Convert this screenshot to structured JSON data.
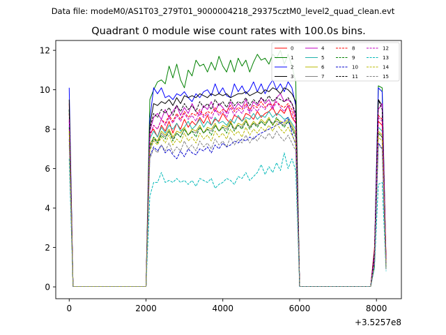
{
  "figure": {
    "suptitle": "Data file: modeM0/AS1T03_279T01_9000004218_29375cztM0_level2_quad_clean.evt"
  },
  "chart_data": {
    "type": "line",
    "title": "Quadrant 0 module wise count rates with 100.0s bins.",
    "xlabel": "",
    "ylabel": "",
    "offset_label": "+3.5257e8",
    "xlim": [
      -350,
      8650
    ],
    "ylim": [
      -0.6,
      12.5
    ],
    "xticks": [
      0,
      2000,
      4000,
      6000,
      8000
    ],
    "xtick_labels": [
      "0",
      "2000",
      "4000",
      "6000",
      "8000"
    ],
    "yticks": [
      0,
      2,
      4,
      6,
      8,
      10,
      12
    ],
    "ytick_labels": [
      "0",
      "2",
      "4",
      "6",
      "8",
      "10",
      "12"
    ],
    "grid": false,
    "legend_position": "top-right",
    "legend_columns": 4,
    "segments": [
      {
        "start": 0,
        "step": 100,
        "count": 2
      },
      {
        "start": 2000,
        "step": 100,
        "count": 41
      },
      {
        "start": 7850,
        "step": 100,
        "count": 5
      }
    ],
    "series": [
      {
        "name": "0",
        "color": "#ff0000",
        "dash": "solid",
        "values": [
          9.3,
          0.02,
          0.02,
          7.8,
          8.0,
          7.6,
          8.2,
          7.9,
          8.4,
          7.8,
          8.3,
          8.0,
          8.5,
          8.1,
          8.4,
          8.2,
          8.6,
          8.3,
          8.7,
          8.2,
          8.5,
          8.4,
          8.8,
          8.5,
          8.3,
          8.7,
          8.6,
          8.4,
          8.8,
          8.7,
          8.5,
          8.9,
          8.6,
          8.8,
          8.9,
          9.1,
          8.7,
          9.0,
          8.8,
          9.2,
          8.6,
          8.3,
          0.02,
          0.02,
          2.0,
          8.4,
          8.2,
          1.5
        ]
      },
      {
        "name": "1",
        "color": "#008000",
        "dash": "solid",
        "values": [
          9.0,
          0.02,
          0.02,
          9.5,
          10.0,
          10.4,
          10.5,
          10.3,
          11.2,
          10.6,
          11.3,
          10.5,
          10.1,
          11.0,
          10.7,
          11.5,
          11.2,
          11.3,
          10.9,
          11.4,
          11.0,
          11.7,
          11.2,
          10.9,
          11.5,
          10.9,
          11.6,
          11.2,
          11.5,
          10.9,
          11.4,
          11.8,
          11.5,
          11.6,
          11.3,
          11.8,
          11.6,
          12.0,
          11.3,
          11.8,
          11.2,
          10.4,
          0.02,
          0.02,
          1.0,
          10.2,
          10.1,
          1.2
        ]
      },
      {
        "name": "2",
        "color": "#0000ff",
        "dash": "solid",
        "values": [
          10.1,
          0.02,
          0.02,
          8.5,
          10.1,
          9.8,
          10.1,
          9.6,
          9.7,
          9.5,
          9.8,
          9.7,
          9.9,
          9.6,
          9.4,
          9.8,
          9.6,
          9.9,
          10.0,
          9.7,
          10.3,
          9.8,
          10.1,
          9.7,
          9.6,
          10.3,
          9.9,
          10.2,
          9.8,
          10.0,
          10.4,
          9.9,
          10.3,
          9.8,
          10.2,
          10.5,
          10.0,
          10.3,
          9.9,
          10.4,
          10.1,
          9.2,
          0.02,
          0.02,
          1.8,
          10.1,
          9.9,
          1.1
        ]
      },
      {
        "name": "3",
        "color": "#000000",
        "dash": "solid",
        "values": [
          9.5,
          0.02,
          0.02,
          8.2,
          9.3,
          9.2,
          9.4,
          9.3,
          9.5,
          9.2,
          9.6,
          9.3,
          9.7,
          9.6,
          9.7,
          9.6,
          9.8,
          9.7,
          9.6,
          9.8,
          9.7,
          9.8,
          9.7,
          9.8,
          9.6,
          9.7,
          9.8,
          9.8,
          9.9,
          9.7,
          9.8,
          9.9,
          9.8,
          10.0,
          9.9,
          10.1,
          10.0,
          9.8,
          10.1,
          10.0,
          9.8,
          9.4,
          0.02,
          0.02,
          1.6,
          9.5,
          9.2,
          1.3
        ]
      },
      {
        "name": "4",
        "color": "#c000c0",
        "dash": "solid",
        "values": [
          8.5,
          0.02,
          0.02,
          7.9,
          8.6,
          8.8,
          8.5,
          9.0,
          8.6,
          8.9,
          9.2,
          8.7,
          9.1,
          8.8,
          9.3,
          8.9,
          8.7,
          9.2,
          9.0,
          9.4,
          8.9,
          9.3,
          9.1,
          8.8,
          9.4,
          9.0,
          9.3,
          9.1,
          9.5,
          8.9,
          9.4,
          9.2,
          9.6,
          9.3,
          9.5,
          9.1,
          9.6,
          9.8,
          9.4,
          9.5,
          9.3,
          8.6,
          0.02,
          0.02,
          1.6,
          9.0,
          9.3,
          1.4
        ]
      },
      {
        "name": "5",
        "color": "#20b2aa",
        "dash": "solid",
        "values": [
          8.2,
          0.02,
          0.02,
          7.5,
          7.9,
          7.6,
          8.1,
          7.8,
          8.2,
          8.0,
          8.3,
          7.9,
          8.1,
          8.4,
          8.0,
          8.2,
          8.5,
          8.1,
          8.4,
          8.2,
          8.6,
          8.3,
          8.4,
          8.2,
          8.5,
          8.3,
          8.7,
          8.4,
          8.6,
          8.5,
          8.8,
          8.5,
          8.7,
          8.6,
          8.9,
          8.6,
          8.8,
          8.7,
          8.5,
          8.6,
          8.3,
          8.0,
          0.02,
          0.02,
          1.4,
          8.1,
          7.9,
          1.1
        ]
      },
      {
        "name": "6",
        "color": "#b8b800",
        "dash": "solid",
        "values": [
          8.0,
          0.02,
          0.02,
          7.2,
          7.6,
          7.4,
          7.9,
          7.7,
          8.0,
          7.6,
          7.9,
          7.8,
          8.1,
          7.7,
          8.0,
          7.9,
          8.2,
          7.8,
          8.1,
          8.0,
          8.3,
          7.9,
          8.2,
          8.1,
          8.4,
          8.0,
          8.3,
          8.2,
          8.5,
          8.1,
          8.4,
          8.2,
          8.5,
          8.3,
          8.6,
          8.2,
          8.5,
          8.4,
          8.3,
          8.5,
          8.2,
          7.8,
          0.02,
          0.02,
          1.3,
          7.9,
          7.7,
          1.0
        ]
      },
      {
        "name": "7",
        "color": "#808080",
        "dash": "solid",
        "values": [
          7.8,
          0.02,
          0.02,
          7.0,
          7.5,
          7.3,
          7.8,
          7.6,
          7.9,
          7.5,
          7.8,
          7.6,
          8.0,
          7.7,
          7.9,
          7.8,
          8.1,
          7.8,
          8.0,
          7.9,
          8.2,
          7.9,
          8.1,
          8.0,
          8.3,
          8.0,
          8.2,
          8.1,
          8.4,
          8.1,
          8.3,
          8.2,
          8.4,
          8.2,
          8.5,
          8.3,
          8.4,
          8.3,
          8.2,
          8.4,
          8.1,
          7.7,
          0.02,
          0.02,
          1.2,
          7.8,
          7.6,
          1.0
        ]
      },
      {
        "name": "8",
        "color": "#ff0000",
        "dash": "dashed",
        "values": [
          8.8,
          0.02,
          0.02,
          7.6,
          8.2,
          8.0,
          8.5,
          8.3,
          8.7,
          8.4,
          8.8,
          8.5,
          8.9,
          8.6,
          8.8,
          8.7,
          9.0,
          8.7,
          8.9,
          8.8,
          9.1,
          8.8,
          9.0,
          8.9,
          9.2,
          8.9,
          9.1,
          9.0,
          9.3,
          9.0,
          9.2,
          9.1,
          9.4,
          9.1,
          9.3,
          9.2,
          9.4,
          9.2,
          9.1,
          9.3,
          9.0,
          8.5,
          0.02,
          0.02,
          1.7,
          8.7,
          8.5,
          1.3
        ]
      },
      {
        "name": "9",
        "color": "#008000",
        "dash": "dashed",
        "values": [
          8.1,
          0.02,
          0.02,
          7.1,
          7.6,
          7.3,
          7.7,
          7.5,
          7.9,
          7.4,
          7.8,
          7.6,
          8.0,
          7.7,
          7.9,
          7.6,
          8.1,
          7.8,
          8.0,
          7.7,
          8.2,
          7.9,
          8.1,
          7.8,
          8.3,
          7.9,
          8.2,
          8.0,
          8.4,
          8.0,
          8.3,
          8.1,
          8.4,
          8.2,
          8.5,
          8.2,
          8.6,
          8.3,
          8.1,
          8.4,
          8.0,
          7.6,
          0.02,
          0.02,
          1.3,
          7.8,
          7.6,
          1.0
        ]
      },
      {
        "name": "10",
        "color": "#0000cc",
        "dash": "dashed",
        "values": [
          7.5,
          0.02,
          0.02,
          6.6,
          7.1,
          6.9,
          7.2,
          6.8,
          7.0,
          6.7,
          6.5,
          6.9,
          6.6,
          7.0,
          6.8,
          6.7,
          7.0,
          6.9,
          7.1,
          6.8,
          7.2,
          7.0,
          7.3,
          7.1,
          7.2,
          7.4,
          7.3,
          7.5,
          7.4,
          7.6,
          7.5,
          7.7,
          7.8,
          7.9,
          8.0,
          8.1,
          8.2,
          8.3,
          8.4,
          8.6,
          7.8,
          7.2,
          0.02,
          0.02,
          1.2,
          7.3,
          7.0,
          0.9
        ]
      },
      {
        "name": "11",
        "color": "#000000",
        "dash": "dashed",
        "values": [
          9.0,
          0.02,
          0.02,
          8.0,
          8.8,
          8.6,
          9.0,
          8.8,
          9.1,
          8.7,
          9.2,
          8.9,
          9.3,
          9.0,
          9.2,
          8.9,
          9.4,
          9.1,
          9.3,
          9.0,
          9.5,
          9.2,
          9.4,
          9.1,
          9.5,
          9.2,
          9.4,
          9.3,
          9.6,
          9.2,
          9.5,
          9.3,
          9.6,
          9.4,
          9.7,
          9.4,
          9.6,
          9.5,
          9.4,
          9.6,
          9.3,
          8.8,
          0.02,
          0.02,
          1.7,
          9.5,
          9.0,
          1.2
        ]
      },
      {
        "name": "12",
        "color": "#c000c0",
        "dash": "dashed",
        "values": [
          8.4,
          0.02,
          0.02,
          7.7,
          8.2,
          8.0,
          8.5,
          8.2,
          8.6,
          8.3,
          8.7,
          8.4,
          8.8,
          8.5,
          8.7,
          8.4,
          8.9,
          8.6,
          8.8,
          8.5,
          9.0,
          8.7,
          8.9,
          8.6,
          9.1,
          8.7,
          9.0,
          8.8,
          9.2,
          8.8,
          9.1,
          8.9,
          9.2,
          9.0,
          9.3,
          9.0,
          9.4,
          9.1,
          8.9,
          9.2,
          8.8,
          8.3,
          0.02,
          0.02,
          1.5,
          8.6,
          8.4,
          1.2
        ]
      },
      {
        "name": "13",
        "color": "#00b8b8",
        "dash": "dashed",
        "values": [
          6.5,
          0.02,
          0.02,
          4.6,
          5.3,
          5.3,
          5.8,
          5.3,
          5.4,
          5.3,
          5.5,
          5.3,
          5.4,
          5.2,
          5.4,
          5.1,
          5.5,
          5.4,
          5.3,
          5.5,
          5.0,
          5.2,
          5.3,
          5.5,
          5.4,
          5.2,
          5.6,
          5.5,
          5.8,
          5.4,
          5.6,
          5.8,
          6.2,
          5.7,
          6.1,
          5.8,
          6.3,
          5.9,
          6.8,
          6.0,
          6.5,
          5.9,
          0.02,
          0.02,
          1.0,
          5.2,
          5.3,
          0.8
        ]
      },
      {
        "name": "14",
        "color": "#b8b800",
        "dash": "dashed",
        "values": [
          7.9,
          0.02,
          0.02,
          6.9,
          7.4,
          7.2,
          7.6,
          7.3,
          7.7,
          7.2,
          7.5,
          7.3,
          7.8,
          7.4,
          7.6,
          7.3,
          7.8,
          7.5,
          7.7,
          7.4,
          7.9,
          7.6,
          7.8,
          7.5,
          8.0,
          7.7,
          7.9,
          7.6,
          8.1,
          7.7,
          8.0,
          7.8,
          8.1,
          7.9,
          8.2,
          7.9,
          8.3,
          8.0,
          7.8,
          8.1,
          7.7,
          7.3,
          0.02,
          0.02,
          1.2,
          7.6,
          7.4,
          1.0
        ]
      },
      {
        "name": "15",
        "color": "#808080",
        "dash": "dashed",
        "values": [
          7.2,
          0.02,
          0.02,
          6.5,
          7.0,
          6.8,
          7.2,
          6.9,
          7.3,
          6.8,
          7.1,
          6.9,
          7.4,
          7.0,
          7.2,
          6.9,
          7.4,
          7.1,
          7.3,
          7.0,
          7.5,
          7.2,
          7.4,
          7.1,
          7.6,
          7.2,
          7.5,
          7.3,
          7.7,
          7.3,
          7.6,
          7.4,
          7.7,
          7.5,
          7.8,
          7.5,
          7.9,
          7.6,
          7.4,
          7.7,
          7.3,
          6.9,
          0.02,
          0.02,
          1.1,
          7.2,
          7.0,
          0.9
        ]
      }
    ]
  }
}
